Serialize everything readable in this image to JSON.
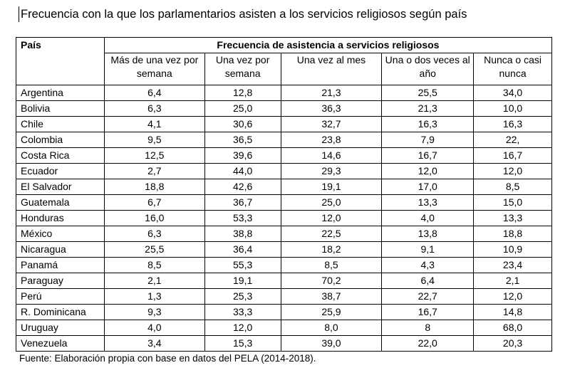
{
  "title": "Frecuencia con la que los parlamentarios asisten a los servicios religiosos según país",
  "table": {
    "group_header": "Frecuencia de asistencia a servicios religiosos",
    "first_column_header": "País",
    "columns": [
      "Más de una vez por semana",
      "Una vez por semana",
      "Una vez al mes",
      "Una o dos veces al año",
      "Nunca o casi nunca"
    ],
    "rows": [
      [
        "Argentina",
        "6,4",
        "12,8",
        "21,3",
        "25,5",
        "34,0"
      ],
      [
        "Bolivia",
        "6,3",
        "25,0",
        "36,3",
        "21,3",
        "10,0"
      ],
      [
        "Chile",
        "4,1",
        "30,6",
        "32,7",
        "16,3",
        "16,3"
      ],
      [
        "Colombia",
        "9,5",
        "36,5",
        "23,8",
        "7,9",
        "22,"
      ],
      [
        "Costa Rica",
        "12,5",
        "39,6",
        "14,6",
        "16,7",
        "16,7"
      ],
      [
        "Ecuador",
        "2,7",
        "44,0",
        "29,3",
        "12,0",
        "12,0"
      ],
      [
        "El Salvador",
        "18,8",
        "42,6",
        "19,1",
        "17,0",
        "8,5"
      ],
      [
        "Guatemala",
        "6,7",
        "36,7",
        "25,0",
        "13,3",
        "15,0"
      ],
      [
        "Honduras",
        "16,0",
        "53,3",
        "12,0",
        "4,0",
        "13,3"
      ],
      [
        "México",
        "6,3",
        "38,8",
        "22,5",
        "13,8",
        "18,8"
      ],
      [
        "Nicaragua",
        "25,5",
        "36,4",
        "18,2",
        "9,1",
        "10,9"
      ],
      [
        "Panamá",
        "8,5",
        "55,3",
        "8,5",
        "4,3",
        "23,4"
      ],
      [
        "Paraguay",
        "2,1",
        "19,1",
        "70,2",
        "6,4",
        "2,1"
      ],
      [
        "Perú",
        "1,3",
        "25,3",
        "38,7",
        "22,7",
        "12,0"
      ],
      [
        "R. Dominicana",
        "9,3",
        "33,3",
        "25,9",
        "16,7",
        "14,8"
      ],
      [
        "Uruguay",
        "4,0",
        "12,0",
        "8,0",
        "8",
        "68,0"
      ],
      [
        "Venezuela",
        "3,4",
        "15,3",
        "39,0",
        "22,0",
        "20,3"
      ]
    ]
  },
  "source": "Fuente: Elaboración propia con base en datos del PELA (2014-2018)."
}
